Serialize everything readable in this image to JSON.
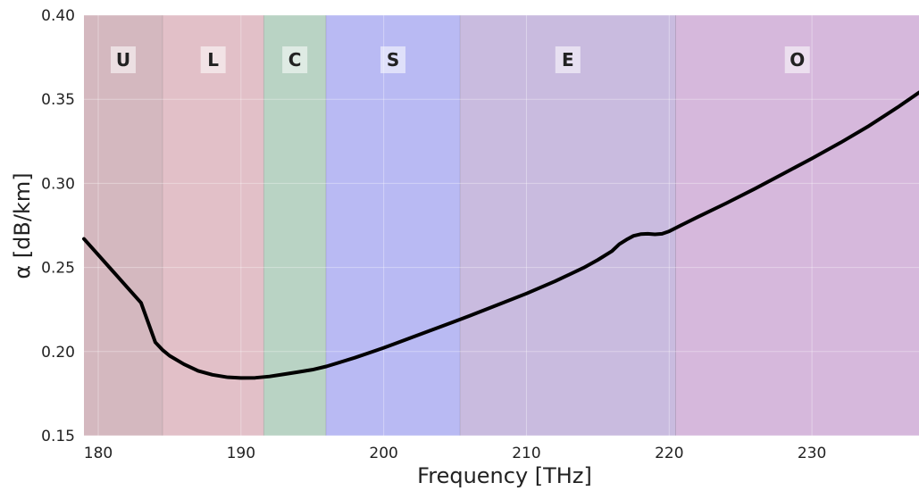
{
  "chart_data": {
    "type": "line",
    "title": "",
    "xlabel": "Frequency [THz]",
    "ylabel": "α [dB/km]",
    "xlim": [
      179,
      237.5
    ],
    "ylim": [
      0.15,
      0.4
    ],
    "xticks": [
      180,
      190,
      200,
      210,
      220,
      230
    ],
    "yticks": [
      0.15,
      0.2,
      0.25,
      0.3,
      0.35,
      0.4
    ],
    "xtick_labels": [
      "180",
      "190",
      "200",
      "210",
      "220",
      "230"
    ],
    "ytick_labels": [
      "0.15",
      "0.20",
      "0.25",
      "0.30",
      "0.35",
      "0.40"
    ],
    "grid": true,
    "bands": [
      {
        "label": "U",
        "x_start": 179.0,
        "x_end": 184.5,
        "color": "#d4b8bf"
      },
      {
        "label": "L",
        "x_start": 184.5,
        "x_end": 191.6,
        "color": "#e2c0c8"
      },
      {
        "label": "C",
        "x_start": 191.6,
        "x_end": 195.95,
        "color": "#b9d3c4"
      },
      {
        "label": "S",
        "x_start": 195.95,
        "x_end": 205.35,
        "color": "#b9baf3"
      },
      {
        "label": "E",
        "x_start": 205.35,
        "x_end": 220.45,
        "color": "#c9bbdf"
      },
      {
        "label": "O",
        "x_start": 220.45,
        "x_end": 237.5,
        "color": "#d6b8dc"
      }
    ],
    "series": [
      {
        "color": "#000000",
        "x": [
          179.0,
          180.0,
          181.0,
          182.0,
          183.0,
          184.0,
          184.5,
          185.0,
          186.0,
          187.0,
          188.0,
          189.0,
          190.0,
          191.0,
          192.0,
          193.0,
          194.0,
          195.0,
          196.0,
          197.0,
          198.0,
          199.0,
          200.0,
          202.0,
          204.0,
          206.0,
          208.0,
          210.0,
          212.0,
          214.0,
          215.0,
          216.0,
          216.5,
          217.0,
          217.5,
          218.0,
          218.5,
          219.0,
          219.5,
          220.0,
          221.0,
          222.0,
          224.0,
          226.0,
          228.0,
          230.0,
          232.0,
          234.0,
          236.0,
          237.5
        ],
        "y": [
          0.267,
          0.2575,
          0.248,
          0.2385,
          0.229,
          0.2055,
          0.201,
          0.1975,
          0.1925,
          0.1885,
          0.1862,
          0.1848,
          0.1843,
          0.1844,
          0.1852,
          0.1865,
          0.1878,
          0.1892,
          0.1912,
          0.1938,
          0.1964,
          0.1993,
          0.2022,
          0.2085,
          0.2148,
          0.2212,
          0.2278,
          0.2345,
          0.2418,
          0.2498,
          0.2545,
          0.2598,
          0.2638,
          0.2665,
          0.2688,
          0.2698,
          0.27,
          0.2697,
          0.27,
          0.2715,
          0.2758,
          0.28,
          0.2882,
          0.2968,
          0.3058,
          0.3148,
          0.3242,
          0.3342,
          0.3452,
          0.354
        ]
      }
    ]
  }
}
